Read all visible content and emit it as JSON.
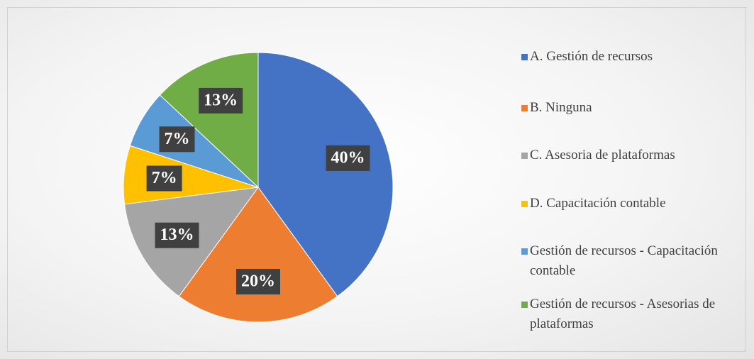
{
  "chart_data": {
    "type": "pie",
    "categories": [
      "A. Gestión de recursos",
      "B. Ninguna",
      "C. Asesoria de plataformas",
      "D. Capacitación contable",
      "Gestión de recursos - Capacitación contable",
      "Gestión de recursos - Asesorias de plataformas"
    ],
    "values": [
      40,
      20,
      13,
      7,
      7,
      13
    ],
    "value_labels": [
      "40%",
      "20%",
      "13%",
      "7%",
      "7%",
      "13%"
    ],
    "colors": [
      "#4472c4",
      "#ed7d31",
      "#a5a5a5",
      "#ffc000",
      "#5b9bd5",
      "#70ad47"
    ],
    "legend": "right"
  }
}
